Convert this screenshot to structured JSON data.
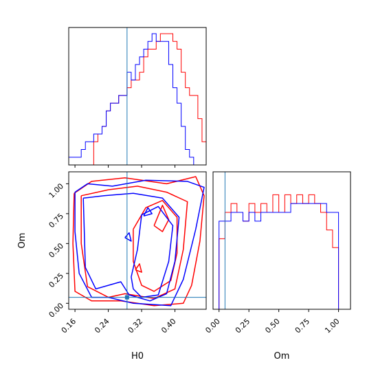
{
  "chart_data": {
    "type": "corner",
    "colors": {
      "series_a": "#ff0000",
      "series_b": "#0000ff",
      "truth": "#1f77b4"
    },
    "truth": {
      "H0": 0.285,
      "Om": 0.05
    },
    "axes": {
      "H0": {
        "label": "H0",
        "range": [
          0.145,
          0.475
        ],
        "ticks": [
          0.16,
          0.24,
          0.32,
          0.4
        ],
        "tick_labels": [
          "0.16",
          "0.24",
          "0.32",
          "0.40"
        ]
      },
      "Om": {
        "label": "Om",
        "range": [
          -0.05,
          1.1
        ],
        "ticks": [
          0.0,
          0.25,
          0.5,
          0.75,
          1.0
        ],
        "tick_labels": [
          "0.00",
          "0.25",
          "0.50",
          "0.75",
          "1.00"
        ]
      }
    },
    "hist_H0": {
      "bin_edges": [
        0.145,
        0.155,
        0.165,
        0.175,
        0.185,
        0.195,
        0.205,
        0.215,
        0.225,
        0.235,
        0.245,
        0.255,
        0.265,
        0.275,
        0.285,
        0.295,
        0.305,
        0.315,
        0.325,
        0.335,
        0.345,
        0.355,
        0.365,
        0.375,
        0.385,
        0.395,
        0.405,
        0.415,
        0.425,
        0.435,
        0.445,
        0.455,
        0.465,
        0.475
      ],
      "series_a": [
        0,
        0,
        0,
        0,
        0,
        0,
        3,
        4,
        5,
        7,
        8,
        8,
        9,
        9,
        10,
        11,
        11,
        12,
        14,
        15,
        15,
        16,
        17,
        17,
        17,
        16,
        15,
        12,
        10,
        9,
        9,
        6,
        3
      ],
      "series_b": [
        1,
        1,
        1,
        2,
        3,
        3,
        4,
        4,
        5,
        7,
        8,
        8,
        9,
        9,
        12,
        11,
        13,
        14,
        15,
        16,
        17,
        16,
        16,
        16,
        13,
        10,
        8,
        5,
        2,
        1,
        0,
        0,
        0
      ]
    },
    "hist_Om": {
      "bin_edges": [
        -0.05,
        0.0,
        0.05,
        0.1,
        0.15,
        0.2,
        0.25,
        0.3,
        0.35,
        0.4,
        0.45,
        0.5,
        0.55,
        0.6,
        0.65,
        0.7,
        0.75,
        0.8,
        0.85,
        0.9,
        0.95,
        1.0,
        1.05
      ],
      "series_a": [
        0,
        8,
        11,
        12,
        11,
        10,
        12,
        11,
        12,
        11,
        13,
        11,
        13,
        12,
        13,
        12,
        13,
        12,
        11,
        9,
        7,
        0
      ],
      "series_b": [
        0,
        10,
        10,
        11,
        11,
        10,
        11,
        10,
        11,
        11,
        11,
        11,
        11,
        12,
        12,
        12,
        12,
        12,
        12,
        11,
        11,
        0
      ]
    },
    "contours_H0_Om": {
      "series_a": [
        [
          [
            0.158,
            0.92
          ],
          [
            0.2,
            1.02
          ],
          [
            0.28,
            1.05
          ],
          [
            0.38,
            1.0
          ],
          [
            0.45,
            1.06
          ],
          [
            0.47,
            0.9
          ],
          [
            0.46,
            0.52
          ],
          [
            0.44,
            0.15
          ],
          [
            0.42,
            0.0
          ],
          [
            0.35,
            -0.02
          ],
          [
            0.27,
            0.02
          ],
          [
            0.2,
            0.02
          ],
          [
            0.16,
            0.1
          ],
          [
            0.155,
            0.5
          ],
          [
            0.158,
            0.92
          ]
        ],
        [
          [
            0.175,
            0.9
          ],
          [
            0.24,
            0.95
          ],
          [
            0.31,
            0.98
          ],
          [
            0.38,
            0.93
          ],
          [
            0.43,
            0.85
          ],
          [
            0.42,
            0.45
          ],
          [
            0.4,
            0.12
          ],
          [
            0.35,
            0.04
          ],
          [
            0.28,
            0.08
          ],
          [
            0.24,
            0.05
          ],
          [
            0.19,
            0.14
          ],
          [
            0.175,
            0.5
          ],
          [
            0.175,
            0.9
          ]
        ],
        [
          [
            0.3,
            0.62
          ],
          [
            0.33,
            0.8
          ],
          [
            0.37,
            0.86
          ],
          [
            0.405,
            0.72
          ],
          [
            0.405,
            0.42
          ],
          [
            0.39,
            0.19
          ],
          [
            0.35,
            0.1
          ],
          [
            0.32,
            0.15
          ],
          [
            0.3,
            0.35
          ],
          [
            0.3,
            0.62
          ]
        ],
        [
          [
            0.35,
            0.65
          ],
          [
            0.37,
            0.82
          ],
          [
            0.385,
            0.7
          ],
          [
            0.37,
            0.6
          ],
          [
            0.35,
            0.65
          ]
        ],
        [
          [
            0.305,
            0.28
          ],
          [
            0.315,
            0.33
          ],
          [
            0.32,
            0.26
          ],
          [
            0.305,
            0.28
          ]
        ]
      ],
      "series_b": [
        [
          [
            0.16,
            0.93
          ],
          [
            0.19,
            1.0
          ],
          [
            0.25,
            0.98
          ],
          [
            0.33,
            1.03
          ],
          [
            0.43,
            1.02
          ],
          [
            0.47,
            0.97
          ],
          [
            0.45,
            0.62
          ],
          [
            0.42,
            0.2
          ],
          [
            0.39,
            -0.02
          ],
          [
            0.3,
            0.0
          ],
          [
            0.24,
            0.05
          ],
          [
            0.2,
            0.05
          ],
          [
            0.17,
            0.25
          ],
          [
            0.16,
            0.6
          ],
          [
            0.16,
            0.93
          ]
        ],
        [
          [
            0.18,
            0.88
          ],
          [
            0.23,
            0.9
          ],
          [
            0.3,
            0.92
          ],
          [
            0.37,
            0.88
          ],
          [
            0.41,
            0.72
          ],
          [
            0.4,
            0.35
          ],
          [
            0.38,
            0.08
          ],
          [
            0.34,
            0.02
          ],
          [
            0.29,
            0.07
          ],
          [
            0.27,
            0.18
          ],
          [
            0.21,
            0.12
          ],
          [
            0.185,
            0.3
          ],
          [
            0.18,
            0.88
          ]
        ],
        [
          [
            0.295,
            0.22
          ],
          [
            0.31,
            0.45
          ],
          [
            0.32,
            0.74
          ],
          [
            0.36,
            0.81
          ],
          [
            0.395,
            0.65
          ],
          [
            0.385,
            0.35
          ],
          [
            0.36,
            0.07
          ],
          [
            0.32,
            0.05
          ],
          [
            0.3,
            0.12
          ],
          [
            0.295,
            0.22
          ]
        ],
        [
          [
            0.325,
            0.73
          ],
          [
            0.335,
            0.8
          ],
          [
            0.345,
            0.75
          ],
          [
            0.325,
            0.73
          ]
        ],
        [
          [
            0.28,
            0.55
          ],
          [
            0.29,
            0.59
          ],
          [
            0.295,
            0.52
          ],
          [
            0.28,
            0.55
          ]
        ]
      ]
    }
  }
}
